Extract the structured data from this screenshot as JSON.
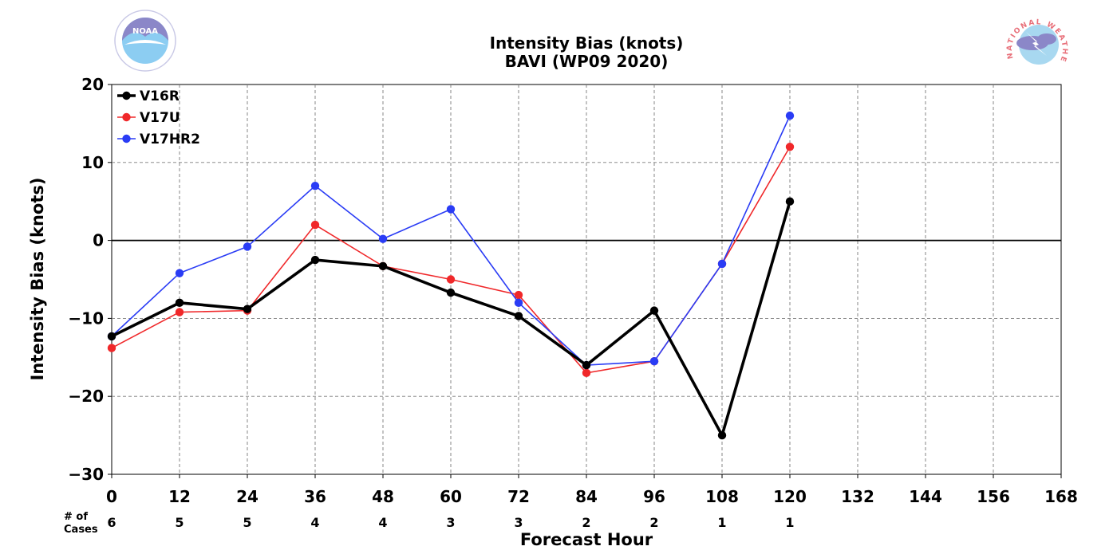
{
  "header": {
    "title_line1": "Intensity Bias (knots)",
    "title_line2": "BAVI (WP09 2020)",
    "left_logo_text": "NOAA",
    "left_logo_ring_text": "NATIONAL OCEANIC AND ATMOSPHERIC ADMINISTRATION · U.S. DEPARTMENT OF COMMERCE",
    "right_logo_ring_text": "NATIONAL WEATHER SERVICE"
  },
  "cases": {
    "label_line1": "# of",
    "label_line2": "Cases"
  },
  "chart_data": {
    "type": "line",
    "title": "Intensity Bias (knots)",
    "subtitle": "BAVI (WP09 2020)",
    "xlabel": "Forecast Hour",
    "ylabel": "Intensity Bias (knots)",
    "xlim": [
      0,
      168
    ],
    "ylim": [
      -30,
      20
    ],
    "x_ticks": [
      0,
      12,
      24,
      36,
      48,
      60,
      72,
      84,
      96,
      108,
      120,
      132,
      144,
      156,
      168
    ],
    "y_ticks": [
      -30,
      -20,
      -10,
      0,
      10,
      20
    ],
    "y_tick_labels": [
      "−30",
      "−20",
      "−10",
      "0",
      "10",
      "20"
    ],
    "grid": true,
    "legend_position": "top-left",
    "x": [
      0,
      12,
      24,
      36,
      48,
      60,
      72,
      84,
      96,
      108,
      120
    ],
    "cases": [
      6,
      5,
      5,
      4,
      4,
      3,
      3,
      2,
      2,
      1,
      1
    ],
    "series": [
      {
        "name": "V16R",
        "color": "#000000",
        "values": [
          -12.3,
          -8.0,
          -8.8,
          -2.5,
          -3.3,
          -6.7,
          -9.7,
          -16.0,
          -9.0,
          -25.0,
          5.0
        ]
      },
      {
        "name": "V17U",
        "color": "#f0282a",
        "values": [
          -13.8,
          -9.2,
          -9.0,
          2.0,
          -3.3,
          -5.0,
          -7.0,
          -17.0,
          -15.5,
          -3.0,
          12.0
        ]
      },
      {
        "name": "V17HR2",
        "color": "#2a3cf5",
        "values": [
          -12.3,
          -4.2,
          -0.8,
          7.0,
          0.2,
          4.0,
          -8.0,
          -16.0,
          -15.5,
          -3.0,
          16.0
        ]
      }
    ]
  }
}
